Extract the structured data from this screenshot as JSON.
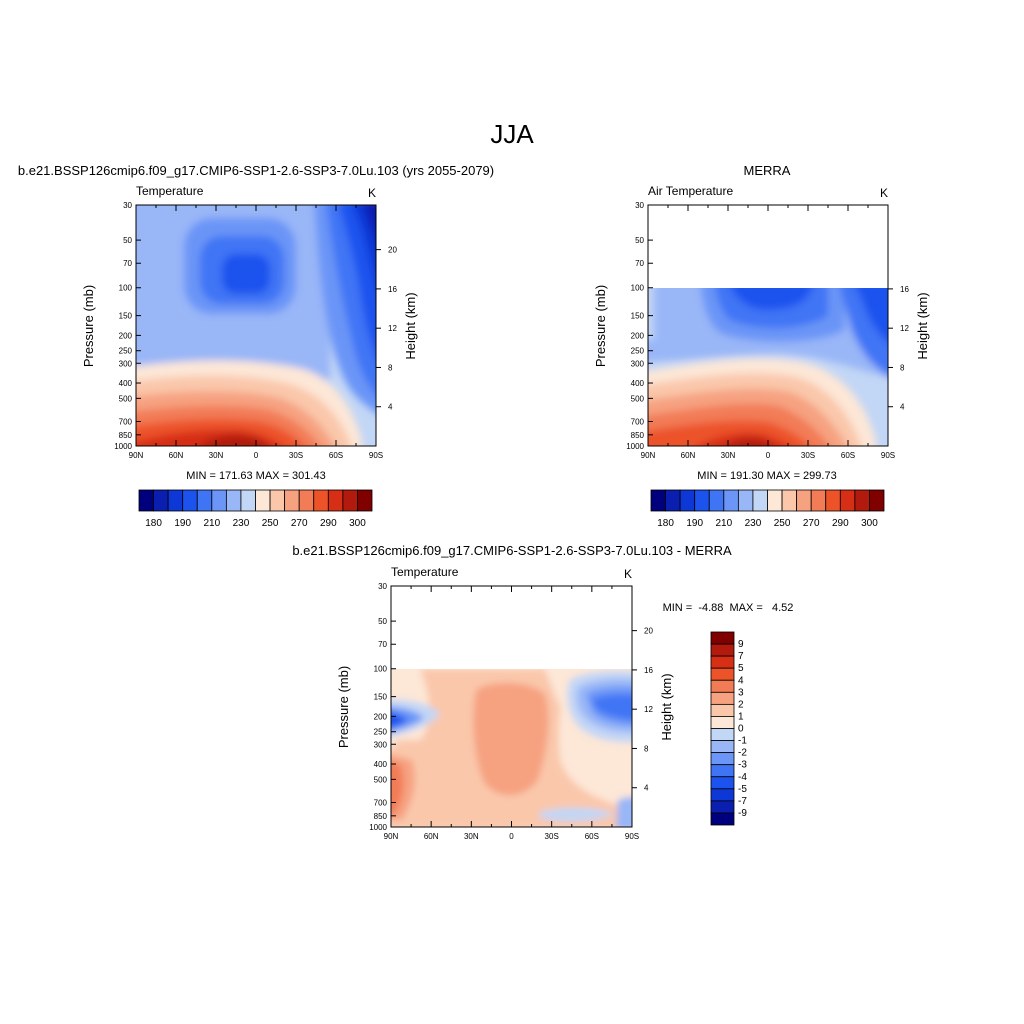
{
  "page": {
    "title": "JJA"
  },
  "chart_data": [
    {
      "type": "heatmap",
      "case_title": "b.e21.BSSP126cmip6.f09_g17.CMIP6-SSP1-2.6-SSP3-7.0Lu.103 (yrs 2055-2079)",
      "variable": "Temperature",
      "units": "K",
      "xlabel": "",
      "ylabel": "Pressure (mb)",
      "y2label": "Height (km)",
      "x_ticks": [
        "90N",
        "60N",
        "30N",
        "0",
        "30S",
        "60S",
        "90S"
      ],
      "y_ticks": [
        30,
        50,
        70,
        100,
        150,
        200,
        250,
        300,
        400,
        500,
        700,
        850,
        1000
      ],
      "y2_ticks": [
        20,
        16,
        12,
        8,
        4
      ],
      "ylim": [
        1000,
        30
      ],
      "data_top_mb": 30,
      "stats_text": "MIN = 171.63  MAX = 301.43",
      "min": 171.63,
      "max": 301.43,
      "colorbar": {
        "orientation": "horizontal",
        "levels": [
          180,
          185,
          190,
          200,
          210,
          220,
          230,
          240,
          250,
          260,
          270,
          280,
          290,
          295,
          300
        ],
        "labels": [
          "180",
          "190",
          "210",
          "230",
          "250",
          "270",
          "290",
          "300"
        ]
      }
    },
    {
      "type": "heatmap",
      "case_title": "MERRA",
      "variable": "Air Temperature",
      "units": "K",
      "xlabel": "",
      "ylabel": "Pressure (mb)",
      "y2label": "Height (km)",
      "x_ticks": [
        "90N",
        "60N",
        "30N",
        "0",
        "30S",
        "60S",
        "90S"
      ],
      "y_ticks": [
        30,
        50,
        70,
        100,
        150,
        200,
        250,
        300,
        400,
        500,
        700,
        850,
        1000
      ],
      "y2_ticks": [
        16,
        12,
        8,
        4
      ],
      "ylim": [
        1000,
        30
      ],
      "data_top_mb": 100,
      "stats_text": "MIN = 191.30  MAX = 299.73",
      "min": 191.3,
      "max": 299.73,
      "colorbar": {
        "orientation": "horizontal",
        "levels": [
          180,
          185,
          190,
          200,
          210,
          220,
          230,
          240,
          250,
          260,
          270,
          280,
          290,
          295,
          300
        ],
        "labels": [
          "180",
          "190",
          "210",
          "230",
          "250",
          "270",
          "290",
          "300"
        ]
      }
    },
    {
      "type": "heatmap",
      "case_title": "b.e21.BSSP126cmip6.f09_g17.CMIP6-SSP1-2.6-SSP3-7.0Lu.103 - MERRA",
      "variable": "Temperature",
      "units": "K",
      "xlabel": "",
      "ylabel": "Pressure (mb)",
      "y2label": "Height (km)",
      "x_ticks": [
        "90N",
        "60N",
        "30N",
        "0",
        "30S",
        "60S",
        "90S"
      ],
      "y_ticks": [
        30,
        50,
        70,
        100,
        150,
        200,
        250,
        300,
        400,
        500,
        700,
        850,
        1000
      ],
      "y2_ticks": [
        20,
        16,
        12,
        8,
        4
      ],
      "ylim": [
        1000,
        30
      ],
      "data_top_mb": 100,
      "stats_text": "MIN =  -4.88  MAX =   4.52",
      "min": -4.88,
      "max": 4.52,
      "colorbar": {
        "orientation": "vertical",
        "levels": [
          9,
          7,
          5,
          4,
          3,
          2,
          1,
          0,
          -1,
          -2,
          -3,
          -4,
          -5,
          -7,
          -9
        ],
        "labels": [
          "9",
          "7",
          "5",
          "4",
          "3",
          "2",
          "1",
          "0",
          "-1",
          "-2",
          "-3",
          "-4",
          "-5",
          "-7",
          "-9"
        ]
      }
    }
  ],
  "colors": {
    "scale": [
      "#00007f",
      "#0a1fb0",
      "#0d38d6",
      "#1c53ee",
      "#3f74f5",
      "#6b95f7",
      "#99b6f7",
      "#c2d6f6",
      "#fde7d7",
      "#fac7ab",
      "#f6a281",
      "#f27c56",
      "#ec5329",
      "#d62f16",
      "#b11a0c",
      "#800000"
    ]
  }
}
